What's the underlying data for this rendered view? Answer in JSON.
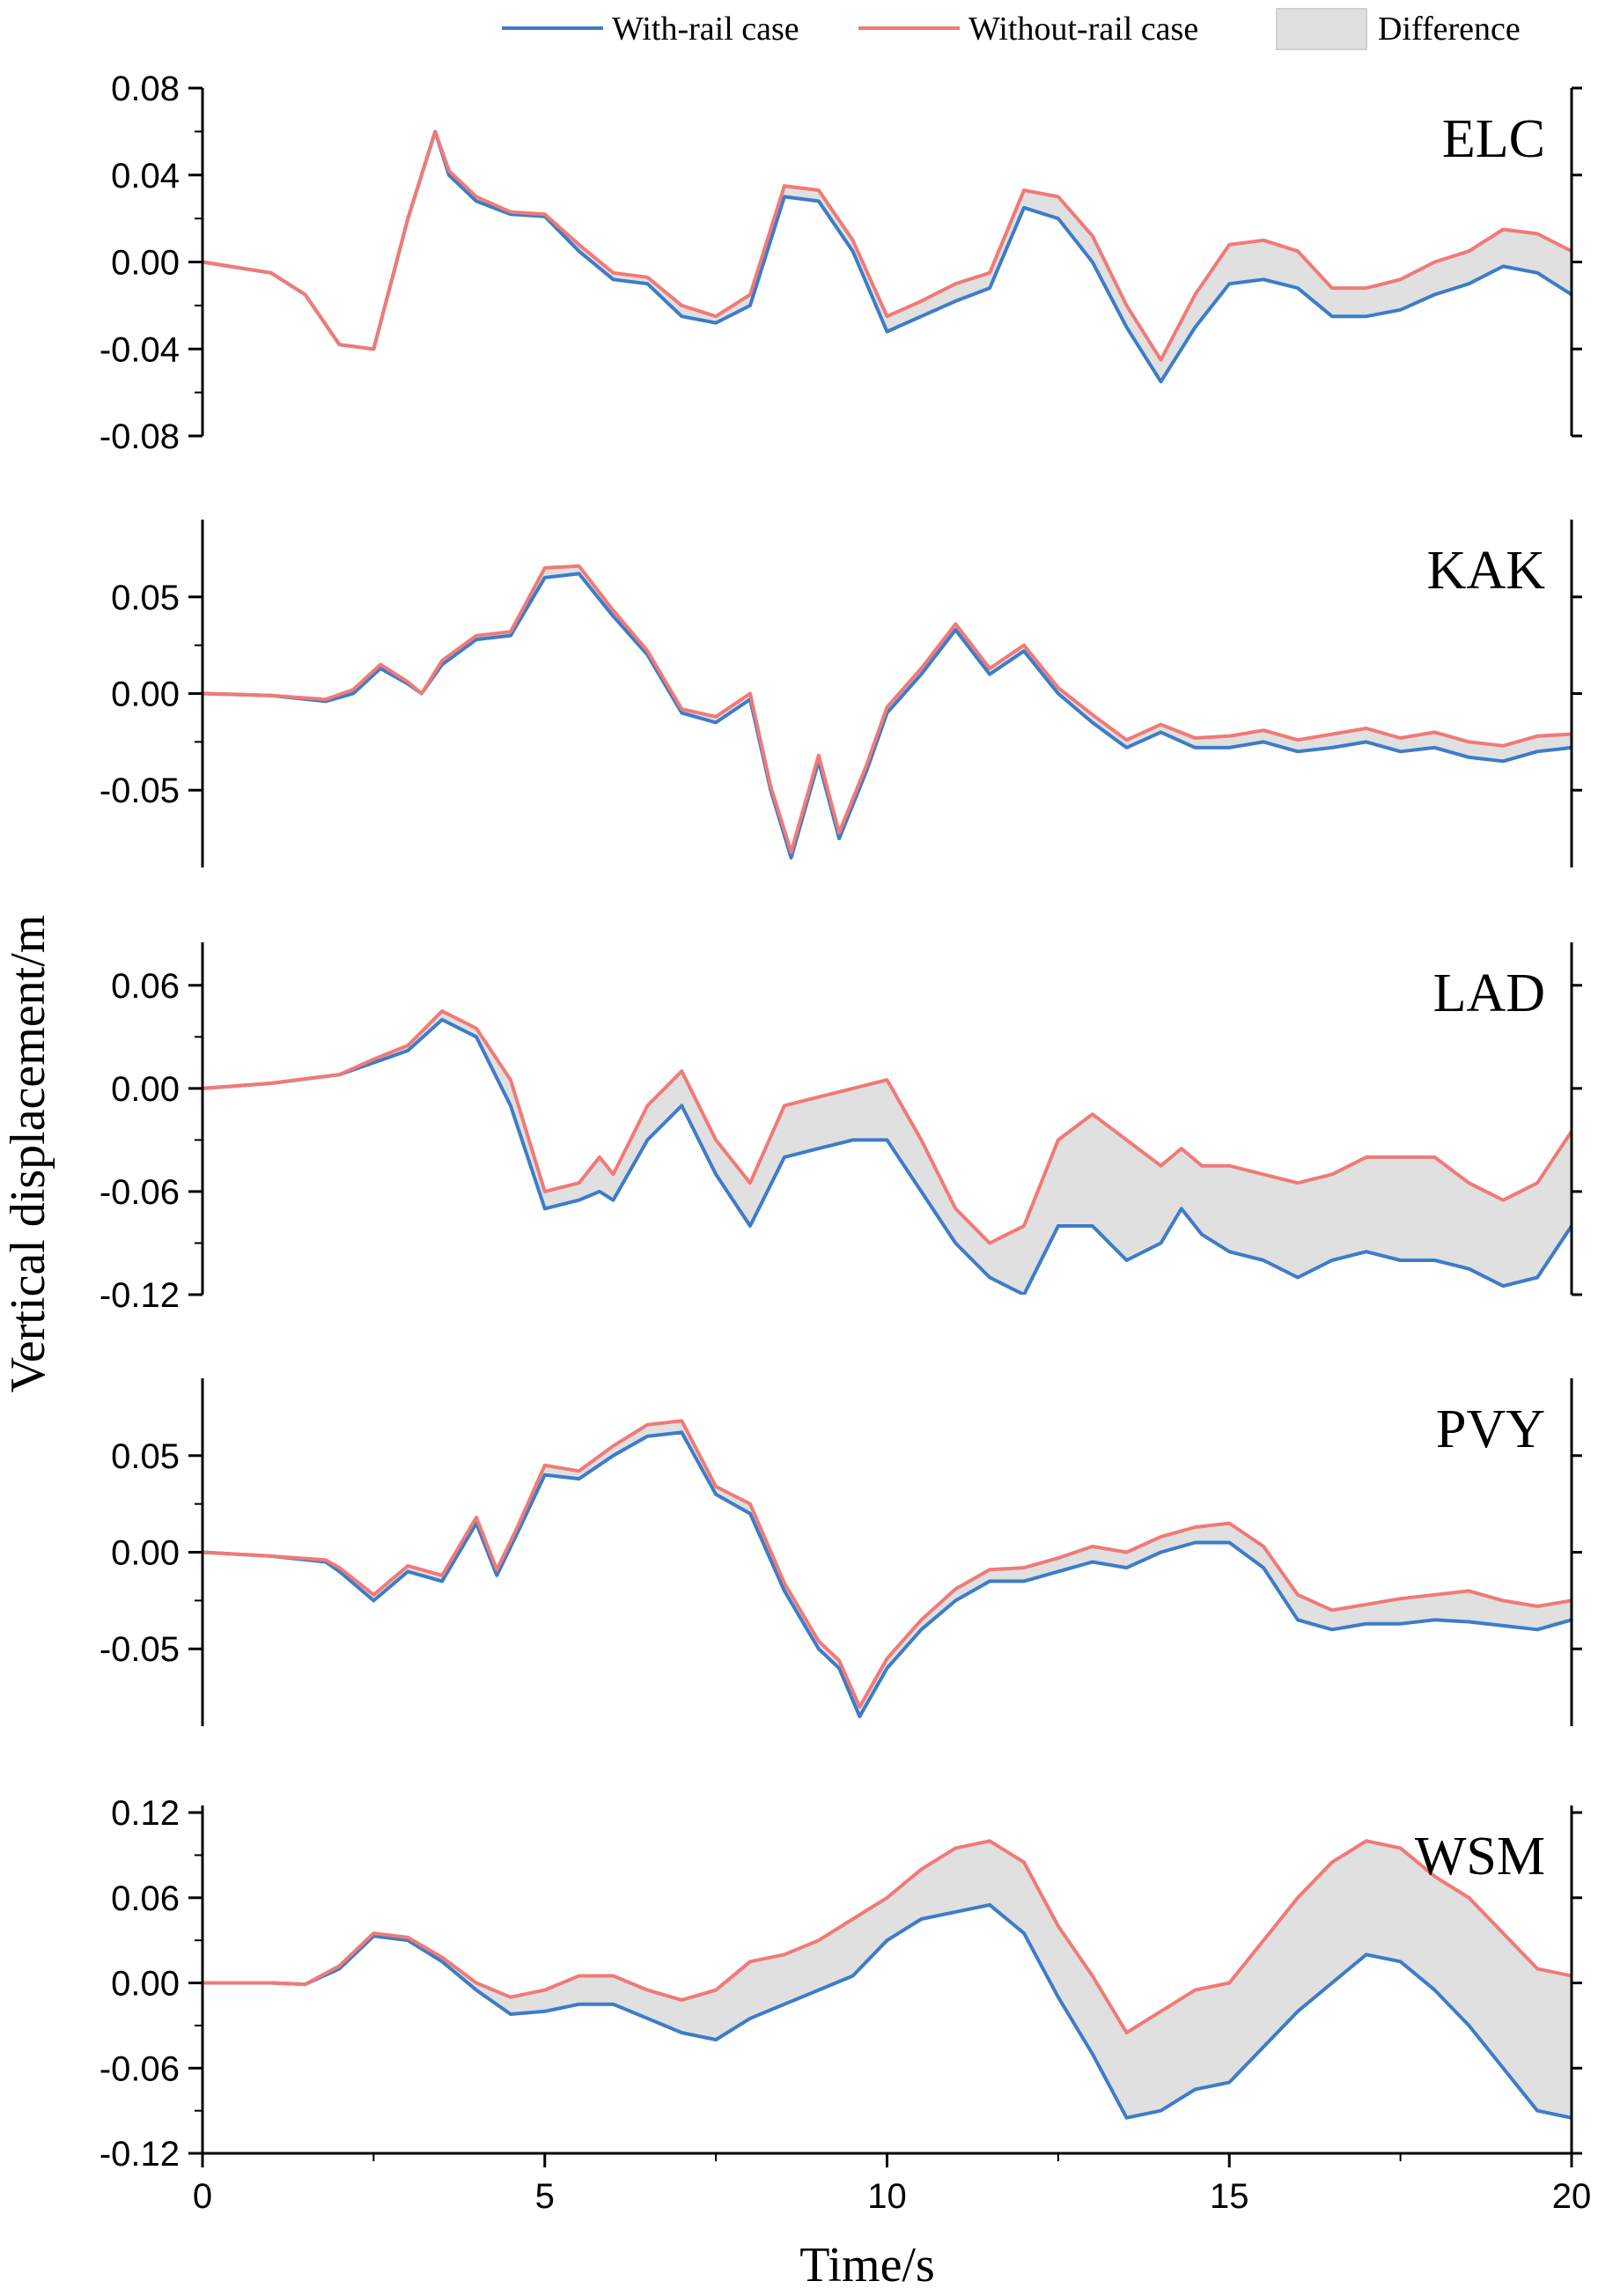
{
  "chart_data": {
    "type": "line",
    "xlabel": "Time/s",
    "ylabel": "Vertical displacement/m",
    "xlim": [
      0,
      20
    ],
    "x_ticks": [
      0,
      5,
      10,
      15,
      20
    ],
    "x_tick_labels": [
      "0",
      "5",
      "10",
      "15",
      "20"
    ],
    "grid": false,
    "legend_position": "top-right",
    "legend": [
      {
        "label": "With-rail case",
        "kind": "line",
        "color": "#3d7cc9"
      },
      {
        "label": "Without-rail case",
        "kind": "line",
        "color": "#f07a77"
      },
      {
        "label": "Difference",
        "kind": "area",
        "color": "#e0e0e0"
      }
    ],
    "colors": {
      "with_rail": "#3d7cc9",
      "without_rail": "#f07a77",
      "difference": "#e0e0e0"
    },
    "panels": [
      {
        "name": "ELC",
        "ylim": [
          -0.08,
          0.08
        ],
        "y_ticks": [
          -0.08,
          -0.04,
          0.0,
          0.04,
          0.08
        ],
        "y_tick_labels": [
          "-0.08",
          "-0.04",
          "0.00",
          "0.04",
          "0.08"
        ],
        "x": [
          0,
          1,
          1.5,
          2.0,
          2.5,
          3.0,
          3.4,
          3.6,
          4.0,
          4.5,
          5.0,
          5.5,
          6.0,
          6.5,
          7.0,
          7.5,
          8.0,
          8.5,
          9.0,
          9.5,
          10.0,
          10.5,
          11.0,
          11.5,
          12.0,
          12.5,
          13.0,
          13.5,
          14.0,
          14.5,
          15.0,
          15.5,
          16.0,
          16.5,
          17.0,
          17.5,
          18.0,
          18.5,
          19.0,
          19.5,
          20.0
        ],
        "with_rail": [
          0,
          -0.005,
          -0.015,
          -0.038,
          -0.04,
          0.02,
          0.06,
          0.04,
          0.028,
          0.022,
          0.021,
          0.005,
          -0.008,
          -0.01,
          -0.025,
          -0.028,
          -0.02,
          0.03,
          0.028,
          0.005,
          -0.032,
          -0.025,
          -0.018,
          -0.012,
          0.025,
          0.02,
          0.0,
          -0.03,
          -0.055,
          -0.03,
          -0.01,
          -0.008,
          -0.012,
          -0.025,
          -0.025,
          -0.022,
          -0.015,
          -0.01,
          -0.002,
          -0.005,
          -0.015
        ],
        "without_rail": [
          0,
          -0.005,
          -0.015,
          -0.038,
          -0.04,
          0.02,
          0.06,
          0.042,
          0.03,
          0.023,
          0.022,
          0.008,
          -0.005,
          -0.007,
          -0.02,
          -0.025,
          -0.015,
          0.035,
          0.033,
          0.01,
          -0.025,
          -0.018,
          -0.01,
          -0.005,
          0.033,
          0.03,
          0.012,
          -0.02,
          -0.045,
          -0.015,
          0.008,
          0.01,
          0.005,
          -0.012,
          -0.012,
          -0.008,
          0.0,
          0.005,
          0.015,
          0.013,
          0.005
        ]
      },
      {
        "name": "KAK",
        "ylim": [
          -0.09,
          0.09
        ],
        "y_ticks": [
          -0.05,
          0.0,
          0.05
        ],
        "y_tick_labels": [
          "-0.05",
          "0.00",
          "0.05"
        ],
        "x": [
          0,
          1,
          1.8,
          2.2,
          2.6,
          3.0,
          3.2,
          3.5,
          4.0,
          4.5,
          5.0,
          5.5,
          6.0,
          6.5,
          7.0,
          7.5,
          8.0,
          8.3,
          8.6,
          9.0,
          9.3,
          9.7,
          10.0,
          10.5,
          11.0,
          11.5,
          12.0,
          12.5,
          13.0,
          13.5,
          14.0,
          14.5,
          15.0,
          15.5,
          16.0,
          16.5,
          17.0,
          17.5,
          18.0,
          18.5,
          19.0,
          19.5,
          20.0
        ],
        "with_rail": [
          0,
          -0.001,
          -0.004,
          0.0,
          0.013,
          0.005,
          0.0,
          0.015,
          0.028,
          0.03,
          0.06,
          0.062,
          0.04,
          0.02,
          -0.01,
          -0.015,
          -0.003,
          -0.05,
          -0.085,
          -0.035,
          -0.075,
          -0.04,
          -0.01,
          0.01,
          0.033,
          0.01,
          0.022,
          0.0,
          -0.015,
          -0.028,
          -0.02,
          -0.028,
          -0.028,
          -0.025,
          -0.03,
          -0.028,
          -0.025,
          -0.03,
          -0.028,
          -0.033,
          -0.035,
          -0.03,
          -0.028
        ],
        "without_rail": [
          0,
          -0.001,
          -0.003,
          0.002,
          0.015,
          0.006,
          0.0,
          0.017,
          0.03,
          0.032,
          0.065,
          0.066,
          0.043,
          0.022,
          -0.008,
          -0.012,
          0.0,
          -0.048,
          -0.082,
          -0.032,
          -0.072,
          -0.037,
          -0.007,
          0.013,
          0.036,
          0.013,
          0.025,
          0.003,
          -0.011,
          -0.024,
          -0.016,
          -0.023,
          -0.022,
          -0.019,
          -0.024,
          -0.021,
          -0.018,
          -0.023,
          -0.02,
          -0.025,
          -0.027,
          -0.022,
          -0.021
        ]
      },
      {
        "name": "LAD",
        "ylim": [
          -0.12,
          0.085
        ],
        "y_ticks": [
          -0.12,
          -0.06,
          0.0,
          0.06
        ],
        "y_tick_labels": [
          "-0.12",
          "-0.06",
          "0.00",
          "0.06"
        ],
        "x": [
          0,
          1,
          2,
          2.5,
          3.0,
          3.5,
          4.0,
          4.5,
          5.0,
          5.5,
          5.8,
          6.0,
          6.5,
          7.0,
          7.5,
          8.0,
          8.5,
          9.0,
          9.5,
          10.0,
          10.5,
          11.0,
          11.5,
          12.0,
          12.5,
          13.0,
          13.5,
          14.0,
          14.3,
          14.6,
          15.0,
          15.5,
          16.0,
          16.5,
          17.0,
          17.5,
          18.0,
          18.5,
          19.0,
          19.5,
          20.0
        ],
        "with_rail": [
          0,
          0.003,
          0.008,
          0.015,
          0.022,
          0.04,
          0.03,
          -0.01,
          -0.07,
          -0.065,
          -0.06,
          -0.065,
          -0.03,
          -0.01,
          -0.05,
          -0.08,
          -0.04,
          -0.035,
          -0.03,
          -0.03,
          -0.06,
          -0.09,
          -0.11,
          -0.12,
          -0.08,
          -0.08,
          -0.1,
          -0.09,
          -0.07,
          -0.085,
          -0.095,
          -0.1,
          -0.11,
          -0.1,
          -0.095,
          -0.1,
          -0.1,
          -0.105,
          -0.115,
          -0.11,
          -0.08
        ],
        "without_rail": [
          0,
          0.003,
          0.008,
          0.017,
          0.025,
          0.045,
          0.035,
          0.005,
          -0.06,
          -0.055,
          -0.04,
          -0.05,
          -0.01,
          0.01,
          -0.03,
          -0.055,
          -0.01,
          -0.005,
          0.0,
          0.005,
          -0.03,
          -0.07,
          -0.09,
          -0.08,
          -0.03,
          -0.015,
          -0.03,
          -0.045,
          -0.035,
          -0.045,
          -0.045,
          -0.05,
          -0.055,
          -0.05,
          -0.04,
          -0.04,
          -0.04,
          -0.055,
          -0.065,
          -0.055,
          -0.025
        ]
      },
      {
        "name": "PVY",
        "ylim": [
          -0.09,
          0.09
        ],
        "y_ticks": [
          -0.05,
          0.0,
          0.05
        ],
        "y_tick_labels": [
          "-0.05",
          "0.00",
          "0.05"
        ],
        "x": [
          0,
          1,
          1.8,
          2.0,
          2.5,
          3.0,
          3.5,
          4.0,
          4.3,
          4.6,
          5.0,
          5.5,
          6.0,
          6.5,
          7.0,
          7.5,
          8.0,
          8.5,
          9.0,
          9.3,
          9.6,
          10.0,
          10.5,
          11.0,
          11.5,
          12.0,
          12.5,
          13.0,
          13.5,
          14.0,
          14.5,
          15.0,
          15.5,
          16.0,
          16.5,
          17.0,
          17.5,
          18.0,
          18.5,
          19.0,
          19.5,
          20.0
        ],
        "with_rail": [
          0,
          -0.002,
          -0.005,
          -0.01,
          -0.025,
          -0.01,
          -0.015,
          0.015,
          -0.012,
          0.01,
          0.04,
          0.038,
          0.05,
          0.06,
          0.062,
          0.03,
          0.02,
          -0.02,
          -0.05,
          -0.06,
          -0.085,
          -0.06,
          -0.04,
          -0.025,
          -0.015,
          -0.015,
          -0.01,
          -0.005,
          -0.008,
          0.0,
          0.005,
          0.005,
          -0.008,
          -0.035,
          -0.04,
          -0.037,
          -0.037,
          -0.035,
          -0.036,
          -0.038,
          -0.04,
          -0.035
        ],
        "without_rail": [
          0,
          -0.002,
          -0.004,
          -0.008,
          -0.022,
          -0.007,
          -0.012,
          0.018,
          -0.009,
          0.013,
          0.045,
          0.042,
          0.055,
          0.066,
          0.068,
          0.034,
          0.025,
          -0.016,
          -0.046,
          -0.056,
          -0.08,
          -0.055,
          -0.035,
          -0.019,
          -0.009,
          -0.008,
          -0.003,
          0.003,
          0.0,
          0.008,
          0.013,
          0.015,
          0.003,
          -0.022,
          -0.03,
          -0.027,
          -0.024,
          -0.022,
          -0.02,
          -0.025,
          -0.028,
          -0.025
        ]
      },
      {
        "name": "WSM",
        "ylim": [
          -0.12,
          0.125
        ],
        "y_ticks": [
          -0.12,
          -0.06,
          0.0,
          0.06,
          0.12
        ],
        "y_tick_labels": [
          "-0.12",
          "-0.06",
          "0.00",
          "0.06",
          "0.12"
        ],
        "x": [
          0,
          1,
          1.5,
          2.0,
          2.5,
          3.0,
          3.5,
          4.0,
          4.5,
          5.0,
          5.5,
          6.0,
          6.5,
          7.0,
          7.5,
          8.0,
          8.5,
          9.0,
          9.5,
          10.0,
          10.5,
          11.0,
          11.5,
          12.0,
          12.5,
          13.0,
          13.5,
          14.0,
          14.5,
          15.0,
          15.5,
          16.0,
          16.5,
          17.0,
          17.5,
          18.0,
          18.5,
          19.0,
          19.5,
          20.0
        ],
        "with_rail": [
          0,
          0.0,
          -0.001,
          0.01,
          0.033,
          0.03,
          0.015,
          -0.005,
          -0.022,
          -0.02,
          -0.015,
          -0.015,
          -0.025,
          -0.035,
          -0.04,
          -0.025,
          -0.015,
          -0.005,
          0.005,
          0.03,
          0.045,
          0.05,
          0.055,
          0.035,
          -0.01,
          -0.05,
          -0.095,
          -0.09,
          -0.075,
          -0.07,
          -0.045,
          -0.02,
          0.0,
          0.02,
          0.015,
          -0.005,
          -0.03,
          -0.06,
          -0.09,
          -0.095
        ],
        "without_rail": [
          0,
          0.0,
          -0.001,
          0.012,
          0.035,
          0.032,
          0.018,
          0.0,
          -0.01,
          -0.005,
          0.005,
          0.005,
          -0.005,
          -0.012,
          -0.005,
          0.015,
          0.02,
          0.03,
          0.045,
          0.06,
          0.08,
          0.095,
          0.1,
          0.085,
          0.04,
          0.005,
          -0.035,
          -0.02,
          -0.005,
          0.0,
          0.03,
          0.06,
          0.085,
          0.1,
          0.095,
          0.075,
          0.06,
          0.035,
          0.01,
          0.005
        ]
      }
    ]
  }
}
